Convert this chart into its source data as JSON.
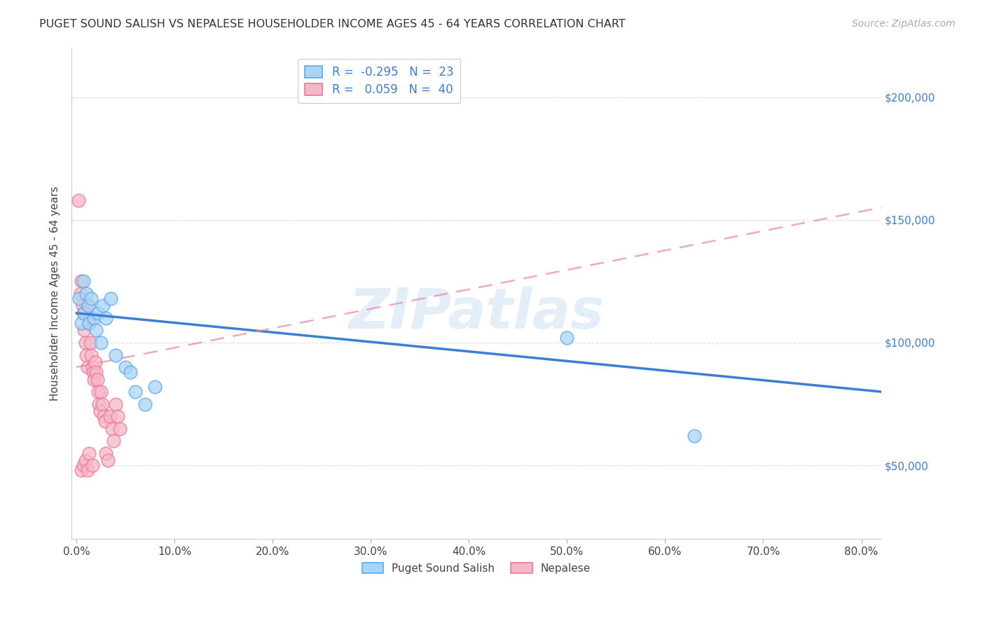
{
  "title": "PUGET SOUND SALISH VS NEPALESE HOUSEHOLDER INCOME AGES 45 - 64 YEARS CORRELATION CHART",
  "source": "Source: ZipAtlas.com",
  "ylabel": "Householder Income Ages 45 - 64 years",
  "xlabel_ticks": [
    "0.0%",
    "10.0%",
    "20.0%",
    "30.0%",
    "40.0%",
    "50.0%",
    "60.0%",
    "70.0%",
    "80.0%"
  ],
  "xlabel_vals": [
    0.0,
    0.1,
    0.2,
    0.3,
    0.4,
    0.5,
    0.6,
    0.7,
    0.8
  ],
  "ylabel_ticks": [
    "$50,000",
    "$100,000",
    "$150,000",
    "$200,000"
  ],
  "ylabel_vals": [
    50000,
    100000,
    150000,
    200000
  ],
  "xlim": [
    -0.005,
    0.82
  ],
  "ylim": [
    20000,
    220000
  ],
  "watermark": "ZIPatlas",
  "blue_label": "Puget Sound Salish",
  "pink_label": "Nepalese",
  "blue_R": "-0.295",
  "blue_N": "23",
  "pink_R": "0.059",
  "pink_N": "40",
  "blue_color": "#aad4f5",
  "pink_color": "#f5b8c8",
  "blue_edge_color": "#5aaaee",
  "pink_edge_color": "#ee7799",
  "blue_line_color": "#3b7fd4",
  "pink_line_color": "#e88899",
  "blue_scatter_x": [
    0.003,
    0.005,
    0.007,
    0.008,
    0.01,
    0.012,
    0.013,
    0.015,
    0.018,
    0.02,
    0.022,
    0.025,
    0.027,
    0.03,
    0.035,
    0.04,
    0.05,
    0.055,
    0.06,
    0.07,
    0.08,
    0.5,
    0.63
  ],
  "blue_scatter_y": [
    118000,
    108000,
    125000,
    112000,
    120000,
    115000,
    108000,
    118000,
    110000,
    105000,
    112000,
    100000,
    115000,
    110000,
    118000,
    95000,
    90000,
    88000,
    80000,
    75000,
    82000,
    102000,
    62000
  ],
  "pink_scatter_x": [
    0.002,
    0.004,
    0.005,
    0.006,
    0.007,
    0.008,
    0.009,
    0.01,
    0.011,
    0.012,
    0.013,
    0.014,
    0.015,
    0.016,
    0.017,
    0.018,
    0.019,
    0.02,
    0.021,
    0.022,
    0.023,
    0.024,
    0.025,
    0.026,
    0.028,
    0.029,
    0.03,
    0.032,
    0.034,
    0.036,
    0.038,
    0.04,
    0.042,
    0.044,
    0.005,
    0.007,
    0.009,
    0.011,
    0.013,
    0.016
  ],
  "pink_scatter_y": [
    158000,
    120000,
    125000,
    115000,
    112000,
    105000,
    100000,
    95000,
    90000,
    115000,
    108000,
    100000,
    95000,
    90000,
    88000,
    85000,
    92000,
    88000,
    85000,
    80000,
    75000,
    72000,
    80000,
    75000,
    70000,
    68000,
    55000,
    52000,
    70000,
    65000,
    60000,
    75000,
    70000,
    65000,
    48000,
    50000,
    52000,
    48000,
    55000,
    50000
  ],
  "blue_line_x0": 0.0,
  "blue_line_y0": 112000,
  "blue_line_x1": 0.82,
  "blue_line_y1": 80000,
  "pink_line_x0": 0.0,
  "pink_line_y0": 90000,
  "pink_line_x1": 0.82,
  "pink_line_y1": 155000,
  "background_color": "#ffffff",
  "grid_color": "#dddddd"
}
